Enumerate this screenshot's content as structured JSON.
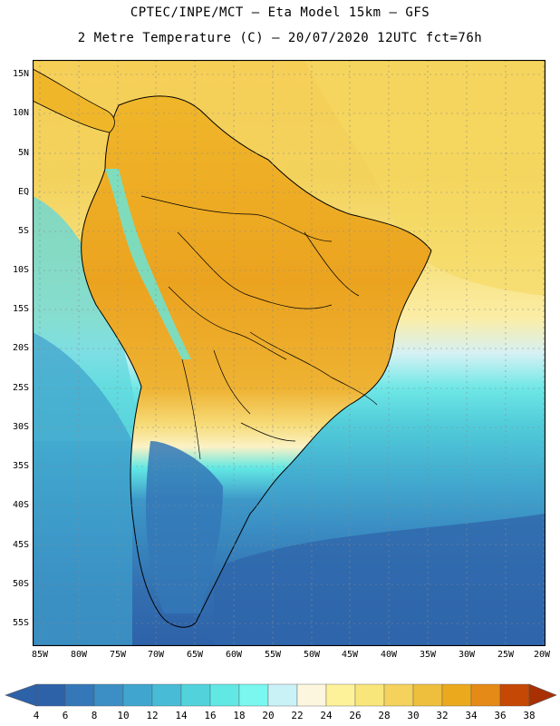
{
  "header": {
    "line1": "CPTEC/INPE/MCT –  Eta Model 15km – GFS",
    "line2": "2 Metre Temperature (C) – 20/07/2020 12UTC fct=76h"
  },
  "map": {
    "lat_labels": [
      "15N",
      "10N",
      "5N",
      "EQ",
      "5S",
      "10S",
      "15S",
      "20S",
      "25S",
      "30S",
      "35S",
      "40S",
      "45S",
      "50S",
      "55S"
    ],
    "lon_labels": [
      "85W",
      "80W",
      "75W",
      "70W",
      "65W",
      "60W",
      "55W",
      "50W",
      "45W",
      "40W",
      "35W",
      "30W",
      "25W",
      "20W"
    ]
  },
  "colorbar": {
    "labels": [
      "4",
      "6",
      "8",
      "10",
      "12",
      "14",
      "16",
      "18",
      "20",
      "22",
      "24",
      "26",
      "28",
      "30",
      "32",
      "34",
      "36",
      "38"
    ],
    "colors": [
      "#2e62a8",
      "#3478b7",
      "#3b8fc4",
      "#40a6cf",
      "#48bcd6",
      "#52d3dc",
      "#62e8e4",
      "#7af7ef",
      "#c9f2f7",
      "#fdf6de",
      "#fdf29a",
      "#f9e67a",
      "#f4d25b",
      "#eebf3c",
      "#eba91e",
      "#e58a16",
      "#dd6a0a",
      "#c54804",
      "#a83003"
    ]
  }
}
